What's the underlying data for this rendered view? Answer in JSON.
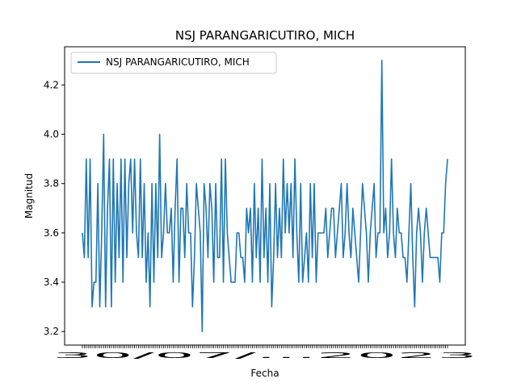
{
  "chart_data": {
    "type": "line",
    "title": "NSJ PARANGARICUTIRO, MICH",
    "xlabel": "Fecha",
    "ylabel": "Magnitud",
    "ylim": [
      3.145,
      4.355
    ],
    "yticks": [
      "3.2",
      "3.4",
      "3.6",
      "3.8",
      "4.0",
      "4.2"
    ],
    "grid": false,
    "legend": "upper-left",
    "color": "#1f77b4",
    "x_tick_text": "30/07/...2023",
    "series": [
      {
        "name": "NSJ PARANGARICUTIRO, MICH",
        "values": [
          3.6,
          3.5,
          3.9,
          3.5,
          3.9,
          3.3,
          3.4,
          3.4,
          3.8,
          3.3,
          3.6,
          4.0,
          3.3,
          3.7,
          3.9,
          3.3,
          3.9,
          3.4,
          3.8,
          3.5,
          3.9,
          3.4,
          3.9,
          3.5,
          3.8,
          3.9,
          3.6,
          3.9,
          3.6,
          3.5,
          3.9,
          3.5,
          3.8,
          3.4,
          3.6,
          3.3,
          3.8,
          3.4,
          3.8,
          3.5,
          4.0,
          3.5,
          3.6,
          3.8,
          3.6,
          3.6,
          3.7,
          3.4,
          3.7,
          3.9,
          3.4,
          3.7,
          3.7,
          3.5,
          3.8,
          3.6,
          3.6,
          3.3,
          3.5,
          3.8,
          3.7,
          3.6,
          3.2,
          3.8,
          3.7,
          3.5,
          3.8,
          3.7,
          3.4,
          3.8,
          3.5,
          3.5,
          3.9,
          3.4,
          3.9,
          3.6,
          3.5,
          3.4,
          3.4,
          3.4,
          3.6,
          3.6,
          3.5,
          3.5,
          3.4,
          3.7,
          3.6,
          3.7,
          3.4,
          3.8,
          3.5,
          3.7,
          3.4,
          3.9,
          3.5,
          3.7,
          3.4,
          3.8,
          3.3,
          3.5,
          3.8,
          3.5,
          3.7,
          3.5,
          3.9,
          3.6,
          3.8,
          3.6,
          3.8,
          3.5,
          3.9,
          3.6,
          3.4,
          3.8,
          3.4,
          3.5,
          3.6,
          3.4,
          3.8,
          3.5,
          3.8,
          3.4,
          3.6,
          3.6,
          3.6,
          3.6,
          3.7,
          3.5,
          3.6,
          3.7,
          3.7,
          3.5,
          3.6,
          3.7,
          3.8,
          3.5,
          3.6,
          3.8,
          3.6,
          3.5,
          3.7,
          3.6,
          3.5,
          3.4,
          3.6,
          3.8,
          3.7,
          3.6,
          3.4,
          3.6,
          3.7,
          3.8,
          3.5,
          3.6,
          3.6,
          4.3,
          3.6,
          3.7,
          3.5,
          3.6,
          3.9,
          3.6,
          3.5,
          3.7,
          3.6,
          3.6,
          3.5,
          3.5,
          3.4,
          3.6,
          3.8,
          3.5,
          3.3,
          3.6,
          3.7,
          3.6,
          3.4,
          3.6,
          3.7,
          3.6,
          3.5,
          3.5,
          3.5,
          3.5,
          3.5,
          3.4,
          3.6,
          3.6,
          3.8,
          3.9
        ]
      }
    ]
  }
}
